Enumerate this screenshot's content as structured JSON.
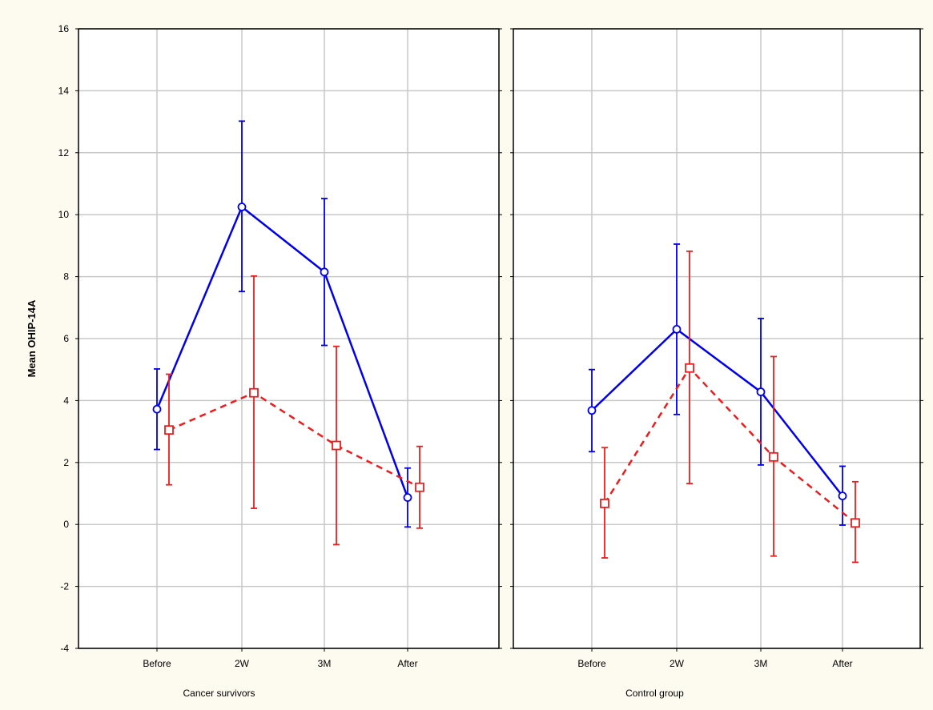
{
  "colors": {
    "background": "#fdfaf0",
    "panel": "#ffffff",
    "grid": "#c8c8c8",
    "series_a": "#0000ee",
    "series_b": "#ee1c1c"
  },
  "chart_data": {
    "type": "line",
    "ylabel": "Mean OHIP-14A",
    "ylim": [
      -4,
      16
    ],
    "yticks": [
      -4,
      -2,
      0,
      2,
      4,
      6,
      8,
      10,
      12,
      14,
      16
    ],
    "grid": true,
    "categories": [
      "Before",
      "2W",
      "3M",
      "After"
    ],
    "panels": [
      {
        "label": "Cancer survivors",
        "series": [
          {
            "marker": "circle",
            "line": "solid",
            "color": "#0000ee",
            "values": [
              3.72,
              10.25,
              8.15,
              0.87
            ],
            "ci_low": [
              2.42,
              7.52,
              5.78,
              -0.08
            ],
            "ci_high": [
              5.02,
              13.02,
              10.52,
              1.82
            ]
          },
          {
            "marker": "square",
            "line": "dashed",
            "color": "#ee1c1c",
            "values": [
              3.05,
              4.25,
              2.55,
              1.2
            ],
            "ci_low": [
              1.28,
              0.52,
              -0.65,
              -0.12
            ],
            "ci_high": [
              4.85,
              8.02,
              5.75,
              2.52
            ]
          }
        ]
      },
      {
        "label": "Control group",
        "series": [
          {
            "marker": "circle",
            "line": "solid",
            "color": "#0000ee",
            "values": [
              3.68,
              6.3,
              4.28,
              0.92
            ],
            "ci_low": [
              2.35,
              3.55,
              1.92,
              -0.02
            ],
            "ci_high": [
              5.0,
              9.05,
              6.65,
              1.88
            ]
          },
          {
            "marker": "square",
            "line": "dashed",
            "color": "#ee1c1c",
            "values": [
              0.68,
              5.05,
              2.18,
              0.05
            ],
            "ci_low": [
              -1.08,
              1.32,
              -1.02,
              -1.22
            ],
            "ci_high": [
              2.48,
              8.82,
              5.42,
              1.38
            ]
          }
        ]
      }
    ]
  }
}
